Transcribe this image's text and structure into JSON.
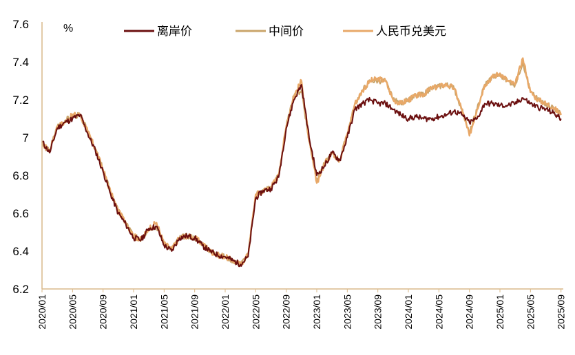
{
  "chart_data": {
    "type": "line",
    "unit_label": "%",
    "ylim": [
      6.2,
      7.6
    ],
    "y_ticks": [
      "7.6",
      "7.4",
      "7.2",
      "7",
      "6.8",
      "6.6",
      "6.4",
      "6.2"
    ],
    "x_ticks": [
      "2020/01",
      "2020/05",
      "2020/09",
      "2021/01",
      "2021/05",
      "2021/09",
      "2022/01",
      "2022/05",
      "2022/09",
      "2023/01",
      "2023/05",
      "2023/09",
      "2024/01",
      "2024/05",
      "2024/09",
      "2025/01",
      "2025/05",
      "2025/09"
    ],
    "legend_position": "top",
    "grid": false,
    "series": [
      {
        "name": "离岸价",
        "color": "#6b0f0f",
        "points": [
          [
            "2020/01",
            6.98
          ],
          [
            "2020/02",
            6.92
          ],
          [
            "2020/03",
            7.05
          ],
          [
            "2020/04",
            7.08
          ],
          [
            "2020/05",
            7.1
          ],
          [
            "2020/06",
            7.12
          ],
          [
            "2020/07",
            7.02
          ],
          [
            "2020/08",
            6.93
          ],
          [
            "2020/09",
            6.82
          ],
          [
            "2020/10",
            6.7
          ],
          [
            "2020/11",
            6.6
          ],
          [
            "2020/12",
            6.54
          ],
          [
            "2021/01",
            6.47
          ],
          [
            "2021/02",
            6.46
          ],
          [
            "2021/03",
            6.52
          ],
          [
            "2021/04",
            6.53
          ],
          [
            "2021/05",
            6.43
          ],
          [
            "2021/06",
            6.4
          ],
          [
            "2021/07",
            6.47
          ],
          [
            "2021/08",
            6.48
          ],
          [
            "2021/09",
            6.47
          ],
          [
            "2021/10",
            6.43
          ],
          [
            "2021/11",
            6.4
          ],
          [
            "2021/12",
            6.38
          ],
          [
            "2022/01",
            6.37
          ],
          [
            "2022/02",
            6.35
          ],
          [
            "2022/03",
            6.33
          ],
          [
            "2022/04",
            6.37
          ],
          [
            "2022/05",
            6.68
          ],
          [
            "2022/06",
            6.72
          ],
          [
            "2022/07",
            6.73
          ],
          [
            "2022/08",
            6.79
          ],
          [
            "2022/09",
            7.05
          ],
          [
            "2022/10",
            7.2
          ],
          [
            "2022/11",
            7.28
          ],
          [
            "2022/12",
            7.0
          ],
          [
            "2023/01",
            6.8
          ],
          [
            "2023/02",
            6.85
          ],
          [
            "2023/03",
            6.92
          ],
          [
            "2023/04",
            6.88
          ],
          [
            "2023/05",
            7.0
          ],
          [
            "2023/06",
            7.15
          ],
          [
            "2023/07",
            7.18
          ],
          [
            "2023/08",
            7.2
          ],
          [
            "2023/09",
            7.18
          ],
          [
            "2023/10",
            7.18
          ],
          [
            "2023/11",
            7.15
          ],
          [
            "2023/12",
            7.12
          ],
          [
            "2024/01",
            7.1
          ],
          [
            "2024/02",
            7.11
          ],
          [
            "2024/03",
            7.1
          ],
          [
            "2024/04",
            7.1
          ],
          [
            "2024/05",
            7.11
          ],
          [
            "2024/06",
            7.12
          ],
          [
            "2024/07",
            7.14
          ],
          [
            "2024/08",
            7.12
          ],
          [
            "2024/09",
            7.08
          ],
          [
            "2024/10",
            7.1
          ],
          [
            "2024/11",
            7.18
          ],
          [
            "2024/12",
            7.18
          ],
          [
            "2025/01",
            7.17
          ],
          [
            "2025/02",
            7.17
          ],
          [
            "2025/03",
            7.18
          ],
          [
            "2025/04",
            7.21
          ],
          [
            "2025/05",
            7.18
          ],
          [
            "2025/06",
            7.16
          ],
          [
            "2025/07",
            7.15
          ],
          [
            "2025/08",
            7.13
          ],
          [
            "2025/09",
            7.1
          ]
        ]
      },
      {
        "name": "中间价",
        "color": "#c9a46a",
        "points": [
          [
            "2020/01",
            6.96
          ],
          [
            "2020/02",
            6.93
          ],
          [
            "2020/03",
            7.06
          ],
          [
            "2020/04",
            7.09
          ],
          [
            "2020/05",
            7.11
          ],
          [
            "2020/06",
            7.12
          ],
          [
            "2020/07",
            7.03
          ],
          [
            "2020/08",
            6.94
          ],
          [
            "2020/09",
            6.83
          ],
          [
            "2020/10",
            6.71
          ],
          [
            "2020/11",
            6.61
          ],
          [
            "2020/12",
            6.55
          ],
          [
            "2021/01",
            6.48
          ],
          [
            "2021/02",
            6.46
          ],
          [
            "2021/03",
            6.52
          ],
          [
            "2021/04",
            6.53
          ],
          [
            "2021/05",
            6.44
          ],
          [
            "2021/06",
            6.41
          ],
          [
            "2021/07",
            6.47
          ],
          [
            "2021/08",
            6.48
          ],
          [
            "2021/09",
            6.47
          ],
          [
            "2021/10",
            6.44
          ],
          [
            "2021/11",
            6.4
          ],
          [
            "2021/12",
            6.38
          ],
          [
            "2022/01",
            6.37
          ],
          [
            "2022/02",
            6.35
          ],
          [
            "2022/03",
            6.33
          ],
          [
            "2022/04",
            6.38
          ],
          [
            "2022/05",
            6.7
          ],
          [
            "2022/06",
            6.72
          ],
          [
            "2022/07",
            6.74
          ],
          [
            "2022/08",
            6.8
          ],
          [
            "2022/09",
            7.06
          ],
          [
            "2022/10",
            7.22
          ],
          [
            "2022/11",
            7.25
          ],
          [
            "2022/12",
            6.98
          ],
          [
            "2023/01",
            6.78
          ],
          [
            "2023/02",
            6.86
          ],
          [
            "2023/03",
            6.92
          ],
          [
            "2023/04",
            6.88
          ],
          [
            "2023/05",
            7.02
          ],
          [
            "2023/06",
            7.18
          ],
          [
            "2023/07",
            7.25
          ],
          [
            "2023/08",
            7.3
          ],
          [
            "2023/09",
            7.3
          ],
          [
            "2023/10",
            7.3
          ],
          [
            "2023/11",
            7.2
          ],
          [
            "2023/12",
            7.18
          ],
          [
            "2024/01",
            7.2
          ],
          [
            "2024/02",
            7.22
          ],
          [
            "2024/03",
            7.23
          ],
          [
            "2024/04",
            7.26
          ],
          [
            "2024/05",
            7.27
          ],
          [
            "2024/06",
            7.28
          ],
          [
            "2024/07",
            7.26
          ],
          [
            "2024/08",
            7.15
          ],
          [
            "2024/09",
            7.02
          ],
          [
            "2024/10",
            7.15
          ],
          [
            "2024/11",
            7.28
          ],
          [
            "2024/12",
            7.32
          ],
          [
            "2025/01",
            7.33
          ],
          [
            "2025/02",
            7.3
          ],
          [
            "2025/03",
            7.28
          ],
          [
            "2025/04",
            7.4
          ],
          [
            "2025/05",
            7.24
          ],
          [
            "2025/06",
            7.2
          ],
          [
            "2025/07",
            7.18
          ],
          [
            "2025/08",
            7.16
          ],
          [
            "2025/09",
            7.12
          ]
        ]
      },
      {
        "name": "人民币兑美元",
        "color": "#e8a868",
        "points": [
          [
            "2020/01",
            6.97
          ],
          [
            "2020/02",
            6.93
          ],
          [
            "2020/03",
            7.06
          ],
          [
            "2020/04",
            7.08
          ],
          [
            "2020/05",
            7.12
          ],
          [
            "2020/06",
            7.12
          ],
          [
            "2020/07",
            7.03
          ],
          [
            "2020/08",
            6.94
          ],
          [
            "2020/09",
            6.83
          ],
          [
            "2020/10",
            6.71
          ],
          [
            "2020/11",
            6.61
          ],
          [
            "2020/12",
            6.55
          ],
          [
            "2021/01",
            6.48
          ],
          [
            "2021/02",
            6.46
          ],
          [
            "2021/03",
            6.52
          ],
          [
            "2021/04",
            6.55
          ],
          [
            "2021/05",
            6.44
          ],
          [
            "2021/06",
            6.41
          ],
          [
            "2021/07",
            6.47
          ],
          [
            "2021/08",
            6.48
          ],
          [
            "2021/09",
            6.47
          ],
          [
            "2021/10",
            6.44
          ],
          [
            "2021/11",
            6.4
          ],
          [
            "2021/12",
            6.38
          ],
          [
            "2022/01",
            6.37
          ],
          [
            "2022/02",
            6.35
          ],
          [
            "2022/03",
            6.33
          ],
          [
            "2022/04",
            6.38
          ],
          [
            "2022/05",
            6.7
          ],
          [
            "2022/06",
            6.72
          ],
          [
            "2022/07",
            6.74
          ],
          [
            "2022/08",
            6.8
          ],
          [
            "2022/09",
            7.06
          ],
          [
            "2022/10",
            7.22
          ],
          [
            "2022/11",
            7.3
          ],
          [
            "2022/12",
            6.98
          ],
          [
            "2023/01",
            6.76
          ],
          [
            "2023/02",
            6.86
          ],
          [
            "2023/03",
            6.92
          ],
          [
            "2023/04",
            6.88
          ],
          [
            "2023/05",
            7.02
          ],
          [
            "2023/06",
            7.18
          ],
          [
            "2023/07",
            7.25
          ],
          [
            "2023/08",
            7.3
          ],
          [
            "2023/09",
            7.31
          ],
          [
            "2023/10",
            7.3
          ],
          [
            "2023/11",
            7.2
          ],
          [
            "2023/12",
            7.18
          ],
          [
            "2024/01",
            7.2
          ],
          [
            "2024/02",
            7.22
          ],
          [
            "2024/03",
            7.23
          ],
          [
            "2024/04",
            7.26
          ],
          [
            "2024/05",
            7.27
          ],
          [
            "2024/06",
            7.28
          ],
          [
            "2024/07",
            7.26
          ],
          [
            "2024/08",
            7.15
          ],
          [
            "2024/09",
            7.01
          ],
          [
            "2024/10",
            7.15
          ],
          [
            "2024/11",
            7.28
          ],
          [
            "2024/12",
            7.32
          ],
          [
            "2025/01",
            7.34
          ],
          [
            "2025/02",
            7.3
          ],
          [
            "2025/03",
            7.28
          ],
          [
            "2025/04",
            7.42
          ],
          [
            "2025/05",
            7.24
          ],
          [
            "2025/06",
            7.2
          ],
          [
            "2025/07",
            7.18
          ],
          [
            "2025/08",
            7.16
          ],
          [
            "2025/09",
            7.12
          ]
        ]
      }
    ]
  }
}
